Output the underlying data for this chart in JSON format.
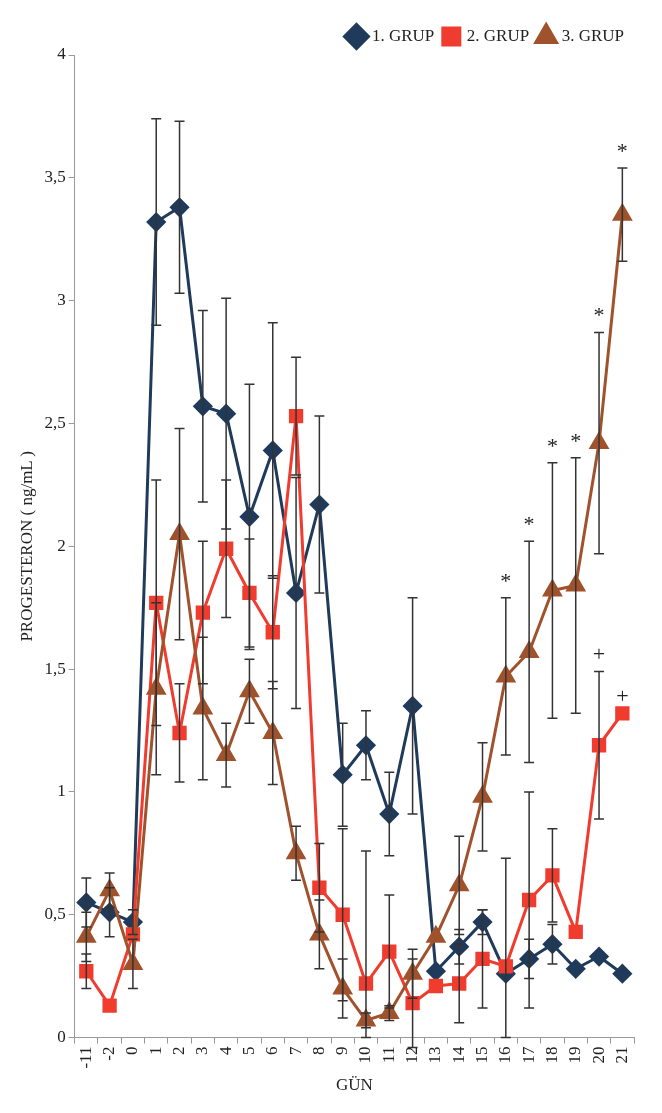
{
  "chart_data": {
    "type": "line",
    "xlabel": "GÜN",
    "ylabel": "PROGESTERON ( ng/mL )",
    "categories": [
      "-11",
      "-2",
      "0",
      "1",
      "2",
      "3",
      "4",
      "5",
      "6",
      "7",
      "8",
      "9",
      "10",
      "11",
      "12",
      "13",
      "14",
      "15",
      "16",
      "17",
      "18",
      "19",
      "20",
      "21"
    ],
    "ylim": [
      0,
      4
    ],
    "yticks": [
      0,
      {
        "value": 0.5,
        "label": "0,5"
      },
      1,
      {
        "value": 1.5,
        "label": "1,5"
      },
      2,
      {
        "value": 2.5,
        "label": "2,5"
      },
      3,
      {
        "value": 3.5,
        "label": "3,5"
      },
      4
    ],
    "legend": "top right",
    "line_style": "solid",
    "series": [
      {
        "name": "1. GRUP",
        "color": "#1f3a5a",
        "marker": "diamond",
        "values": [
          0.55,
          0.51,
          0.47,
          3.32,
          3.38,
          2.57,
          2.54,
          2.12,
          2.39,
          1.81,
          2.17,
          1.07,
          1.19,
          0.91,
          1.35,
          0.27,
          0.37,
          0.47,
          0.26,
          0.32,
          0.38,
          0.28,
          0.33,
          0.26
        ],
        "errors": [
          0.1,
          0.1,
          0.05,
          0.42,
          0.35,
          0.39,
          0.47,
          0.54,
          0.52,
          0.47,
          0.36,
          0.21,
          0.14,
          0.17,
          0.44,
          null,
          0.07,
          0.05,
          null,
          0.08,
          0.08,
          null,
          null,
          null
        ]
      },
      {
        "name": "2. GRUP",
        "color": "#f03c2e",
        "marker": "square",
        "values": [
          0.27,
          0.13,
          0.42,
          1.77,
          1.24,
          1.73,
          1.99,
          1.81,
          1.65,
          2.53,
          0.61,
          0.5,
          0.22,
          0.35,
          0.14,
          0.21,
          0.22,
          0.32,
          0.29,
          0.56,
          0.66,
          0.43,
          1.19,
          1.32
        ],
        "errors": [
          0.07,
          null,
          null,
          0.5,
          0.2,
          0.29,
          0.28,
          0.22,
          0.23,
          0.24,
          0.18,
          0.35,
          [
            0,
            0.76
          ],
          0.23,
          0.18,
          null,
          0.16,
          0.2,
          [
            0,
            0.73
          ],
          0.44,
          0.19,
          null,
          0.3,
          null
        ]
      },
      {
        "name": "3. GRUP",
        "color": "#a0522d",
        "marker": "triangle",
        "values": [
          0.41,
          0.6,
          0.3,
          1.42,
          2.05,
          1.34,
          1.15,
          1.41,
          1.24,
          0.75,
          0.42,
          0.2,
          0.07,
          0.1,
          0.26,
          0.41,
          0.62,
          0.98,
          1.47,
          1.57,
          1.82,
          1.84,
          2.42,
          3.35
        ],
        "errors": [
          0.1,
          0.07,
          0.1,
          0.35,
          0.43,
          0.29,
          0.13,
          0.13,
          0.21,
          0.11,
          0.14,
          0.12,
          0.03,
          0.03,
          0.1,
          null,
          0.2,
          0.22,
          0.32,
          0.45,
          0.52,
          0.52,
          0.45,
          0.19
        ]
      }
    ],
    "annotations": [
      {
        "text": "*",
        "x": "16",
        "y": 1.79
      },
      {
        "text": "*",
        "x": "17",
        "y": 2.02
      },
      {
        "text": "*",
        "x": "18",
        "y": 2.34
      },
      {
        "text": "*",
        "x": "19",
        "y": 2.36
      },
      {
        "text": "*",
        "x": "20",
        "y": 2.87
      },
      {
        "text": "*",
        "x": "21",
        "y": 3.54
      },
      {
        "text": "+",
        "x": "20",
        "y": 1.49
      },
      {
        "text": "+",
        "x": "21",
        "y": 1.32
      }
    ]
  }
}
